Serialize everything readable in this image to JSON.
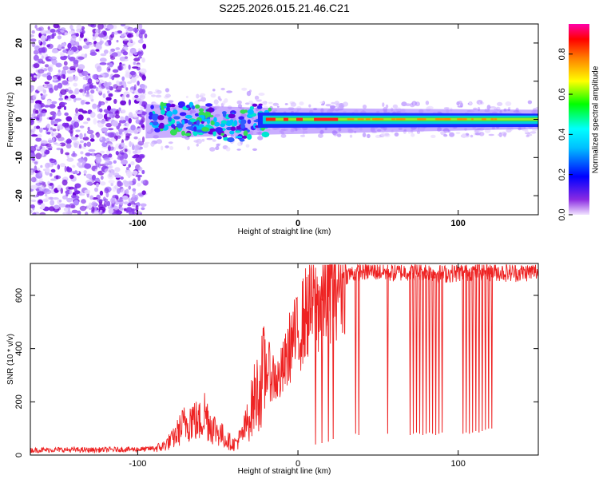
{
  "title": "S225.2026.015.21.46.C21",
  "chart_data": [
    {
      "type": "heatmap",
      "name": "spectrogram",
      "xlabel": "Height of straight line (km)",
      "ylabel": "Frequency (Hz)",
      "xlim": [
        -167,
        150
      ],
      "ylim": [
        -25,
        25
      ],
      "xticks": [
        -100,
        0,
        100
      ],
      "yticks": [
        -20,
        -10,
        0,
        10,
        20
      ],
      "description_of_signal": "Scattered noise below -95 km; concentrated near 0 Hz from -95 km upward, strongest (red) between about -20 and 25 km",
      "colorbar": {
        "label": "Normalized spectral amplitude",
        "range": [
          0,
          0.95
        ],
        "ticks": [
          0.0,
          0.2,
          0.4,
          0.6,
          0.8
        ]
      }
    },
    {
      "type": "line",
      "name": "snr",
      "xlabel": "Height of straight line (km)",
      "ylabel": "SNR (10 * v/v)",
      "xlim": [
        -167,
        150
      ],
      "ylim": [
        0,
        720
      ],
      "xticks": [
        -100,
        0,
        100
      ],
      "yticks": [
        0,
        200,
        400,
        600
      ],
      "color": "#ee2222",
      "series": [
        {
          "name": "SNR",
          "x": [
            -167,
            -150,
            -130,
            -110,
            -95,
            -85,
            -78,
            -72,
            -66,
            -62,
            -58,
            -54,
            -50,
            -45,
            -40,
            -35,
            -30,
            -27,
            -24,
            -20,
            -16,
            -12,
            -8,
            -4,
            0,
            4,
            8,
            12,
            16,
            20,
            24,
            28,
            32,
            36,
            40,
            50,
            60,
            70,
            80,
            90,
            100,
            110,
            120,
            130,
            140,
            150
          ],
          "y": [
            18,
            20,
            19,
            21,
            22,
            30,
            60,
            110,
            140,
            120,
            160,
            110,
            90,
            60,
            40,
            70,
            150,
            220,
            250,
            330,
            300,
            280,
            340,
            430,
            450,
            520,
            560,
            560,
            600,
            640,
            660,
            670,
            680,
            685,
            690,
            690,
            685,
            690,
            690,
            680,
            685,
            690,
            690,
            685,
            685,
            690
          ]
        }
      ],
      "dropouts_x": [
        11,
        15,
        19,
        22,
        36,
        38,
        56,
        70,
        72,
        74,
        76,
        78,
        80,
        82,
        84,
        86,
        88,
        90,
        103,
        105,
        107,
        109,
        111,
        113,
        115,
        117,
        119,
        121
      ],
      "dropouts_y": [
        40,
        45,
        50,
        60,
        80,
        75,
        80,
        75,
        80,
        85,
        80,
        75,
        80,
        85,
        80,
        75,
        80,
        85,
        80,
        85,
        80,
        85,
        90,
        85,
        90,
        95,
        100,
        100
      ]
    }
  ]
}
